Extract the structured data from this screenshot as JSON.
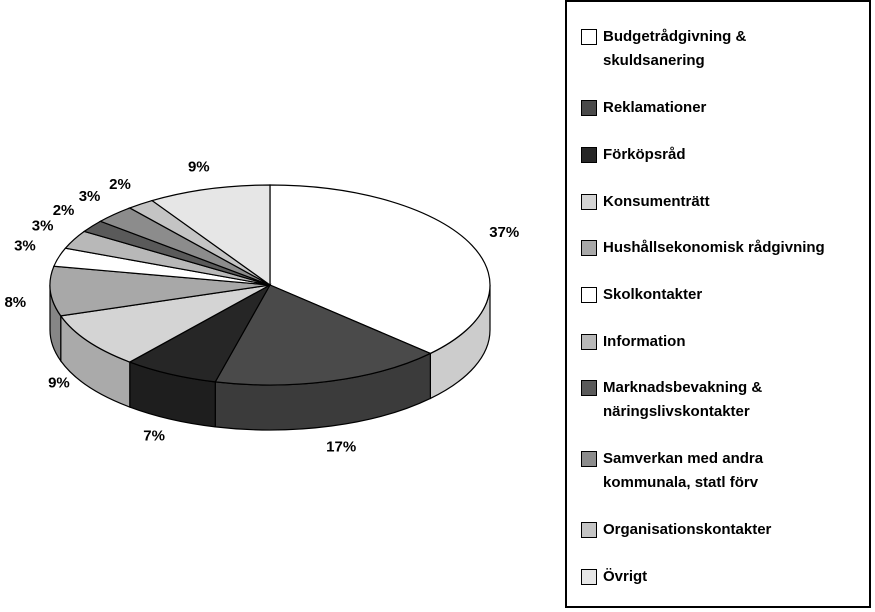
{
  "chart_data": {
    "type": "pie",
    "categories": [
      "Budgetrådgivning &\nskuldsanering",
      "Reklamationer",
      "Förköpsråd",
      "Konsumenträtt",
      "Hushållsekonomisk rådgivning",
      "Skolkontakter",
      "Information",
      "Marknadsbevakning &\nnäringslivskontakter",
      "Samverkan med andra\nkommunala, statl förv",
      "Organisationskontakter",
      "Övrigt"
    ],
    "values": [
      37,
      17,
      7,
      9,
      8,
      3,
      3,
      2,
      3,
      2,
      9
    ],
    "value_labels": [
      "37%",
      "17%",
      "7%",
      "9%",
      "8%",
      "3%",
      "3%",
      "2%",
      "3%",
      "2%",
      "9%"
    ],
    "colors": [
      "#ffffff",
      "#4a4a4a",
      "#262626",
      "#d4d4d4",
      "#a8a8a8",
      "#ffffff",
      "#b8b8b8",
      "#5a5a5a",
      "#8c8c8c",
      "#c4c4c4",
      "#e6e6e6"
    ]
  }
}
